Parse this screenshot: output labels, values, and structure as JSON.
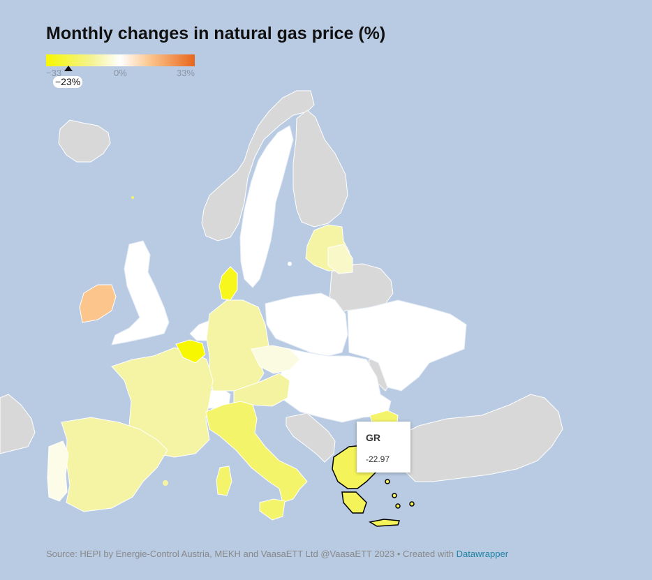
{
  "title": "Monthly changes in natural gas price (%)",
  "legend": {
    "min_label": "−33",
    "mid_label": "0%",
    "max_label": "33%",
    "min": -33,
    "max": 33,
    "marker_value": -23,
    "marker_label": "−23%",
    "colors": [
      "#f7f700",
      "#f4f38f",
      "#ffffff",
      "#fbc58c",
      "#e8661c"
    ]
  },
  "tooltip": {
    "code": "GR",
    "value": "-22.97"
  },
  "colors": {
    "sea": "#b9cbe3",
    "no_data": "#d8d8d8",
    "zero": "#ffffff",
    "highlight_stroke": "#000000"
  },
  "footer": {
    "source": "Source: HEPI by Energie-Control Austria, MEKH and VaasaETT Ltd @VaasaETT 2023 • Created with ",
    "link": "Datawrapper"
  }
}
